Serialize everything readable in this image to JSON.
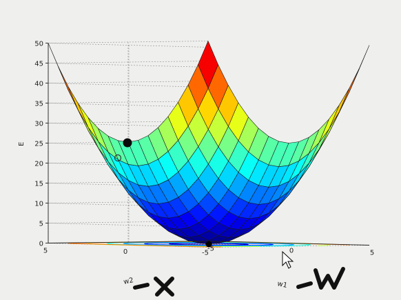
{
  "chart_data": {
    "type": "surface",
    "zlabel": "E",
    "xlabel": "w1",
    "ylabel": "w2",
    "zlim": [
      0,
      50
    ],
    "xlim": [
      -5,
      5
    ],
    "ylim": [
      -5,
      5
    ],
    "z_ticks": [
      "0",
      "5",
      "10",
      "15",
      "20",
      "25",
      "30",
      "35",
      "40",
      "45",
      "50"
    ],
    "w1_ticks": [
      "-5",
      "0",
      "5"
    ],
    "w2_ticks": [
      "-5",
      "0",
      "5"
    ],
    "surface_function": "E = w1^2 + w2^2",
    "colormap": "jet",
    "grid": true,
    "contour_projection": true,
    "markers": [
      {
        "label": "filled-point",
        "E": 25
      },
      {
        "label": "hollow-point",
        "E": 21
      },
      {
        "label": "minimum",
        "w1": 0,
        "w2": 0,
        "E": 0
      }
    ],
    "annotations": [
      "-X",
      "-W"
    ]
  },
  "colors": {
    "background": "#efefed",
    "annotation_ink": "#111111",
    "grid": "#999999"
  },
  "icons": {
    "cursor": "mouse-pointer-icon"
  }
}
